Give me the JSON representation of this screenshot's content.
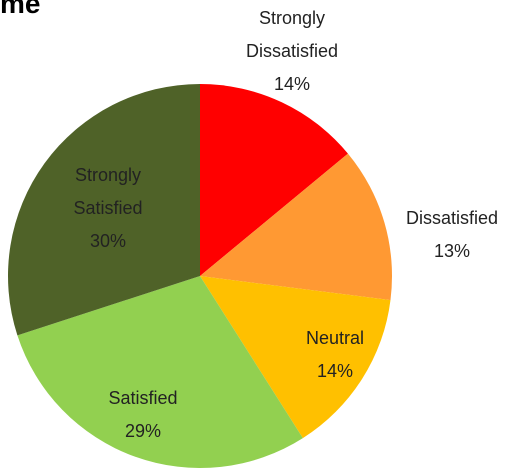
{
  "chart_data": {
    "type": "pie",
    "title": "me",
    "categories": [
      "Strongly Dissatisfied",
      "Dissatisfied",
      "Neutral",
      "Satisfied",
      "Strongly Satisfied"
    ],
    "values": [
      14,
      13,
      14,
      29,
      30
    ],
    "value_labels": [
      "14%",
      "13%",
      "14%",
      "29%",
      "30%"
    ],
    "colors": [
      "#ff0000",
      "#ff9933",
      "#ffc000",
      "#92d050",
      "#4f6228"
    ],
    "start_angle": 90,
    "direction": "clockwise"
  }
}
